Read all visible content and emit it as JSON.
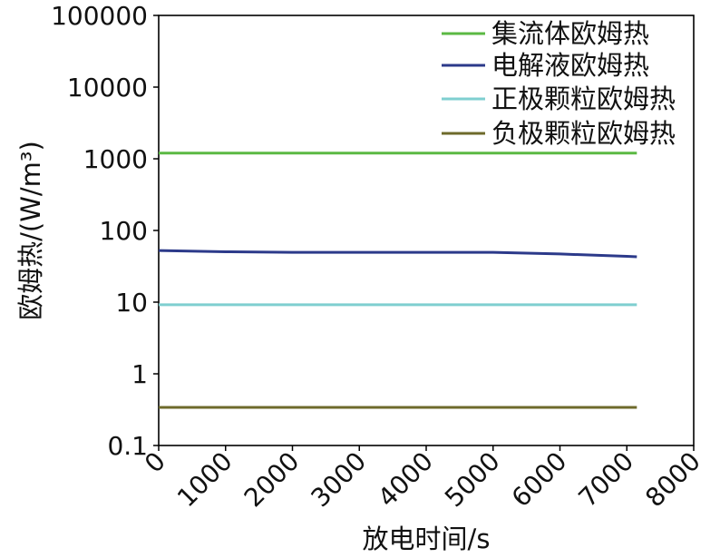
{
  "chart_data": {
    "type": "line",
    "title": "",
    "xlabel": "放电时间/s",
    "ylabel": "欧姆热/(W/m³)",
    "xlim": [
      0,
      8000
    ],
    "ylim": [
      0.1,
      100000
    ],
    "yscale": "log",
    "grid": false,
    "legend": "top-right",
    "xticks": [
      "0",
      "1000",
      "2000",
      "3000",
      "4000",
      "5000",
      "6000",
      "7000",
      "8000"
    ],
    "yticks": [
      "0.1",
      "1",
      "10",
      "100",
      "1000",
      "10000",
      "100000"
    ],
    "series": [
      {
        "name": "集流体欧姆热",
        "color": "#5bb943",
        "x": [
          0,
          1000,
          2000,
          3000,
          4000,
          5000,
          6000,
          7000,
          7150
        ],
        "y": [
          1200,
          1200,
          1200,
          1200,
          1200,
          1200,
          1200,
          1200,
          1200
        ]
      },
      {
        "name": "电解液欧姆热",
        "color": "#2c3a8a",
        "x": [
          0,
          1000,
          2000,
          3000,
          4000,
          5000,
          6000,
          7000,
          7150
        ],
        "y": [
          52.5,
          50.5,
          49.5,
          49.5,
          49.5,
          49.5,
          47,
          43.5,
          43
        ]
      },
      {
        "name": "正极颗粒欧姆热",
        "color": "#7fcfd0",
        "x": [
          0,
          1000,
          2000,
          3000,
          4000,
          5000,
          6000,
          7000,
          7150
        ],
        "y": [
          9.2,
          9.2,
          9.2,
          9.2,
          9.2,
          9.2,
          9.2,
          9.2,
          9.2
        ]
      },
      {
        "name": "负极颗粒欧姆热",
        "color": "#6e6a2b",
        "x": [
          0,
          1000,
          2000,
          3000,
          4000,
          5000,
          6000,
          7000,
          7150
        ],
        "y": [
          0.34,
          0.34,
          0.34,
          0.34,
          0.34,
          0.34,
          0.34,
          0.34,
          0.34
        ]
      }
    ]
  }
}
